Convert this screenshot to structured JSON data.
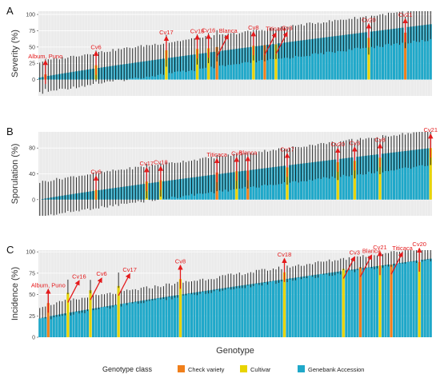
{
  "chart_data": [
    {
      "type": "bar",
      "panel": "A",
      "ylabel": "Severity (%)",
      "ylim": [
        -25,
        105
      ],
      "yticks": [
        0,
        25,
        50,
        75,
        100
      ],
      "n_genotypes": 140,
      "bar_start": 3,
      "bar_end": 85,
      "err_low_offset": 22,
      "err_high_offset": 22,
      "highlights": [
        {
          "name": "Album, Puno",
          "class": "check",
          "index": 2,
          "value": 8
        },
        {
          "name": "Cv6",
          "class": "cultivar",
          "index": 20,
          "value": 22
        },
        {
          "name": "Cv17",
          "class": "cultivar",
          "index": 45,
          "value": 45
        },
        {
          "name": "Cv18",
          "class": "cultivar",
          "index": 56,
          "value": 47
        },
        {
          "name": "Cv16",
          "class": "cultivar",
          "index": 60,
          "value": 48
        },
        {
          "name": "Blanca",
          "class": "check",
          "index": 63,
          "value": 50
        },
        {
          "name": "Cv8",
          "class": "cultivar",
          "index": 76,
          "value": 52
        },
        {
          "name": "Titicaca",
          "class": "check",
          "index": 80,
          "value": 53
        },
        {
          "name": "Cv3",
          "class": "cultivar",
          "index": 84,
          "value": 54
        },
        {
          "name": "Cv20",
          "class": "cultivar",
          "index": 117,
          "value": 64
        },
        {
          "name": "Cv21",
          "class": "check",
          "index": 130,
          "value": 72
        }
      ]
    },
    {
      "type": "bar",
      "panel": "B",
      "ylabel": "Sporulation (%)",
      "ylim": [
        -25,
        105
      ],
      "yticks": [
        0,
        40,
        80
      ],
      "n_genotypes": 140,
      "bar_start": 0,
      "bar_end": 80,
      "err_low_offset": 25,
      "err_high_offset": 25,
      "highlights": [
        {
          "name": "Cv6",
          "class": "cultivar",
          "index": 20,
          "value": 15
        },
        {
          "name": "Cv17",
          "class": "cultivar",
          "index": 38,
          "value": 28
        },
        {
          "name": "Cv18",
          "class": "cultivar",
          "index": 43,
          "value": 30
        },
        {
          "name": "Titicaca",
          "class": "check",
          "index": 63,
          "value": 42
        },
        {
          "name": "Cv4",
          "class": "cultivar",
          "index": 70,
          "value": 44
        },
        {
          "name": "Blanca",
          "class": "check",
          "index": 74,
          "value": 45
        },
        {
          "name": "Cv17",
          "class": "cultivar",
          "index": 88,
          "value": 50
        },
        {
          "name": "Cv20",
          "class": "cultivar",
          "index": 106,
          "value": 58
        },
        {
          "name": "Cv3",
          "class": "cultivar",
          "index": 112,
          "value": 60
        },
        {
          "name": "Cv8",
          "class": "cultivar",
          "index": 121,
          "value": 65
        },
        {
          "name": "Cv21",
          "class": "cultivar",
          "index": 139,
          "value": 80
        }
      ]
    },
    {
      "type": "bar",
      "panel": "C",
      "ylabel": "Incidence (%)",
      "ylim": [
        0,
        102
      ],
      "yticks": [
        0,
        25,
        50,
        75,
        100
      ],
      "n_genotypes": 140,
      "bar_start": 22,
      "bar_end": 92,
      "err_low_offset": 0,
      "err_high_offset": 12,
      "highlights": [
        {
          "name": "Album, Puno",
          "class": "check",
          "index": 3,
          "value": 40
        },
        {
          "name": "Cv16",
          "class": "cultivar",
          "index": 10,
          "value": 52
        },
        {
          "name": "Cv6",
          "class": "cultivar",
          "index": 18,
          "value": 55
        },
        {
          "name": "Cv17",
          "class": "cultivar",
          "index": 28,
          "value": 60
        },
        {
          "name": "Cv8",
          "class": "cultivar",
          "index": 50,
          "value": 68
        },
        {
          "name": "Cv18",
          "class": "cultivar",
          "index": 87,
          "value": 76
        },
        {
          "name": "Cv3",
          "class": "cultivar",
          "index": 108,
          "value": 80
        },
        {
          "name": "Blanca",
          "class": "check",
          "index": 114,
          "value": 82
        },
        {
          "name": "Cv21",
          "class": "cultivar",
          "index": 121,
          "value": 84
        },
        {
          "name": "Titicaca",
          "class": "check",
          "index": 125,
          "value": 85
        },
        {
          "name": "Cv20",
          "class": "cultivar",
          "index": 135,
          "value": 88
        }
      ]
    }
  ],
  "xlabel": "Genotype",
  "legend": {
    "title": "Genotype class",
    "placement": "bottom",
    "items": [
      {
        "key": "check",
        "label": "Check variety",
        "color": "#f07f1b"
      },
      {
        "key": "cultivar",
        "label": "Cultivar",
        "color": "#e8d400"
      },
      {
        "key": "genebank",
        "label": "Genebank Accession",
        "color": "#1fa8c9"
      }
    ]
  },
  "colors": {
    "error_bar": "#1a1a1a",
    "annotation": "#e41a1c",
    "panel_bg": "#ebebeb",
    "grid": "#ffffff"
  }
}
